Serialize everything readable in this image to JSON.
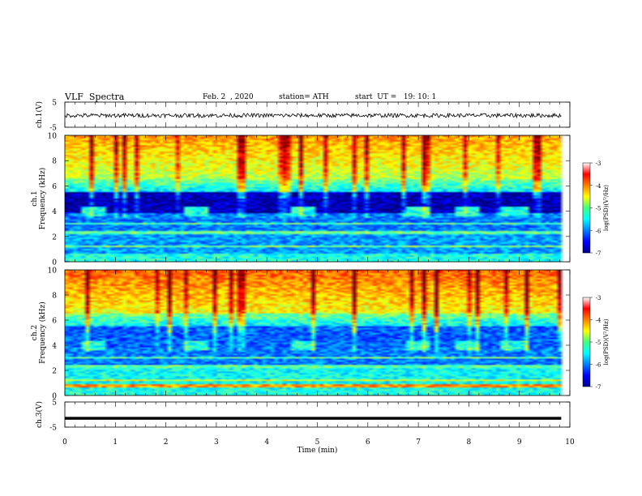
{
  "header": {
    "title": "VLF  Spectra",
    "date": "Feb. 2  , 2020",
    "station": "station= ATH",
    "start": "start  UT =   19: 10: 1"
  },
  "chart_data": [
    {
      "type": "line",
      "panel": "ch1-waveform",
      "ylabel": "ch.1(V)",
      "ylim": [
        -5,
        5
      ],
      "yticks": [
        "5",
        "-5"
      ],
      "xlim": [
        0,
        10
      ],
      "x_extent": [
        0,
        9.83
      ],
      "series": [
        {
          "values_approx_mean": -0.3,
          "amplitude_approx": 0.8,
          "color": "#000000"
        }
      ]
    },
    {
      "type": "heatmap",
      "panel": "ch1-spectrogram",
      "ylabel": "ch.1\nFrequency  (kHz)",
      "ylim": [
        0,
        10
      ],
      "yticks": [
        "0",
        "2",
        "4",
        "6",
        "8",
        "10"
      ],
      "xlim": [
        0,
        10
      ],
      "colorbar": {
        "label": "log(PSD)(V²/Hz)",
        "range": [
          -7,
          -3
        ],
        "ticks": [
          "-3",
          "-4",
          "-5",
          "-6",
          "-7"
        ]
      },
      "dark_band_khz": [
        3.8,
        5.0
      ],
      "bursts_min": [
        0.55,
        2.6,
        4.75,
        7.0,
        8.0,
        8.9
      ],
      "burst_freq_khz": 4.0
    },
    {
      "type": "heatmap",
      "panel": "ch2-spectrogram",
      "ylabel": "ch.2\nFrequency  (kHz)",
      "ylim": [
        0,
        10
      ],
      "yticks": [
        "0",
        "2",
        "4",
        "6",
        "8",
        "10"
      ],
      "xlim": [
        0,
        10
      ],
      "colorbar": {
        "label": "log(PSD)(V²/Hz)",
        "range": [
          -7,
          -3
        ],
        "ticks": [
          "-3",
          "-4",
          "-5",
          "-6",
          "-7"
        ]
      },
      "bursts_min": [
        0.55,
        2.6,
        4.75,
        7.0,
        8.0,
        8.9
      ],
      "burst_freq_khz": 4.0
    },
    {
      "type": "line",
      "panel": "ch3-waveform",
      "ylabel": "ch.3(V)",
      "ylim": [
        -5,
        5
      ],
      "yticks": [
        "5",
        "-5"
      ],
      "xlim": [
        0,
        10
      ],
      "x_extent": [
        0,
        9.83
      ],
      "series": [
        {
          "values_approx_mean": -1.5,
          "color": "#000000"
        }
      ],
      "xlabel": "Time  (min)",
      "xticks": [
        "0",
        "1",
        "2",
        "3",
        "4",
        "5",
        "6",
        "7",
        "8",
        "9",
        "10"
      ]
    }
  ],
  "colors": {
    "jet_low": "#00008f",
    "jet_mid": "#00ff80",
    "jet_high": "#ff0000"
  }
}
